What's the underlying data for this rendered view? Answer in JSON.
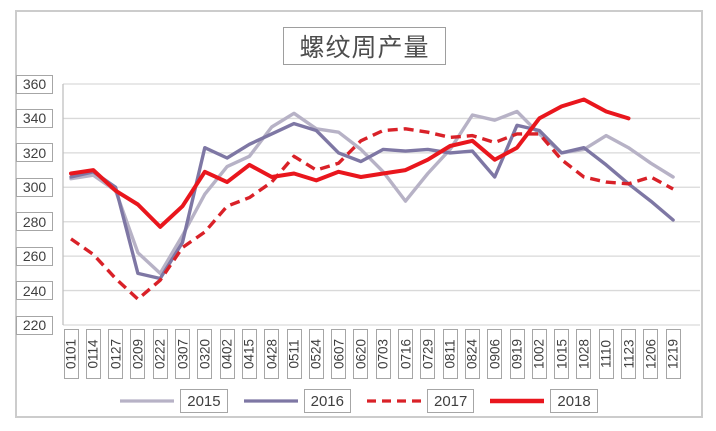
{
  "chart": {
    "frame_border_color": "#cccccc",
    "grid_color": "#d9d9d9",
    "axis_color": "#bfbfbf",
    "label_text_color": "#3f3f3f"
  },
  "chart_data": {
    "type": "line",
    "title": "螺纹周产量",
    "categories": [
      "0101",
      "0114",
      "0127",
      "0209",
      "0222",
      "0307",
      "0320",
      "0402",
      "0415",
      "0428",
      "0511",
      "0524",
      "0607",
      "0620",
      "0703",
      "0716",
      "0729",
      "0811",
      "0824",
      "0906",
      "0919",
      "1002",
      "1015",
      "1028",
      "1110",
      "1123",
      "1206",
      "1219"
    ],
    "series": [
      {
        "name": "2015",
        "color": "#b7b2c6",
        "style": "solid",
        "values": [
          305,
          307,
          298,
          262,
          250,
          272,
          296,
          312,
          318,
          335,
          343,
          334,
          332,
          322,
          309,
          292,
          308,
          322,
          342,
          339,
          344,
          331,
          320,
          322,
          330,
          323,
          314,
          306
        ]
      },
      {
        "name": "2016",
        "color": "#7e77a4",
        "style": "solid",
        "values": [
          306,
          309,
          300,
          250,
          247,
          268,
          323,
          317,
          325,
          331,
          337,
          333,
          320,
          315,
          322,
          321,
          322,
          320,
          321,
          306,
          336,
          333,
          320,
          323,
          313,
          302,
          292,
          281
        ]
      },
      {
        "name": "2017",
        "color": "#d92128",
        "style": "dashed",
        "values": [
          270,
          261,
          247,
          235,
          246,
          265,
          274,
          289,
          294,
          303,
          318,
          310,
          314,
          327,
          333,
          334,
          332,
          329,
          330,
          326,
          331,
          331,
          316,
          306,
          303,
          302,
          306,
          299
        ]
      },
      {
        "name": "2018",
        "color": "#e9161d",
        "style": "solid",
        "values": [
          308,
          310,
          298,
          290,
          277,
          289,
          309,
          303,
          313,
          306,
          308,
          304,
          309,
          306,
          308,
          310,
          316,
          324,
          327,
          316,
          323,
          340,
          347,
          351,
          344,
          340,
          null,
          null
        ]
      }
    ],
    "ylim": [
      220,
      360
    ],
    "yticks": [
      360,
      340,
      320,
      300,
      280,
      260,
      240,
      220
    ],
    "grid": true,
    "legend_position": "bottom"
  }
}
